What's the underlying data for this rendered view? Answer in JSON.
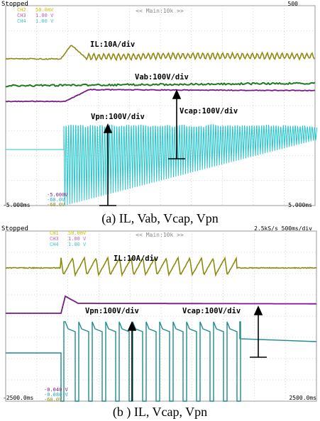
{
  "chart_data": [
    {
      "type": "line",
      "caption": "(a)  IL, Vab, Vcap, Vpn",
      "header": {
        "status": "Stopped",
        "zoom": "<< Main:10k >>",
        "right_readout": "500 ",
        "channels": [
          {
            "name": "CH2",
            "scale": "50.0mV",
            "color": "#c9c200"
          },
          {
            "name": "CH3",
            "scale": "1.00 V",
            "color": "#c060c0"
          },
          {
            "name": "CH4",
            "scale": "1.00 V",
            "color": "#40c8d0"
          }
        ]
      },
      "time_start": "-5.000ms",
      "time_end": "5.000ms",
      "cursor_readouts": [
        "-5.000V",
        "-60.0V",
        "-60.0V"
      ],
      "series": [
        {
          "name": "IL",
          "color": "#8c8a10",
          "label": "IL:10A/div"
        },
        {
          "name": "Vab",
          "color": "#1f7a1f",
          "label": "Vab:100V/div"
        },
        {
          "name": "Vcap",
          "color": "#7a1a8a",
          "label": "Vcap:100V/div"
        },
        {
          "name": "Vpn",
          "color": "#22c5cc",
          "label": "Vpn:100V/div"
        }
      ]
    },
    {
      "type": "line",
      "caption": "(b )  IL, Vcap, Vpn",
      "header": {
        "status": "Stopped",
        "zoom": "<< Main:10k >>",
        "right_readout": "2.5kS/s 500ms/div",
        "channels": [
          {
            "name": "CH1",
            "scale": "50.0mV",
            "color": "#c9c200"
          },
          {
            "name": "CH3",
            "scale": "1.00 V",
            "color": "#c060c0"
          },
          {
            "name": "CH4",
            "scale": "1.00 V",
            "color": "#40c8d0"
          }
        ]
      },
      "time_start": "-2500.0ms",
      "time_end": "2500.0ms",
      "cursor_readouts": [
        "-0.040 V",
        "-0.080 V",
        "-60.0V"
      ],
      "series": [
        {
          "name": "IL",
          "color": "#8c8a10",
          "label": "IL:10A/div"
        },
        {
          "name": "Vcap",
          "color": "#7a1a8a",
          "label": "Vcap:100V/div"
        },
        {
          "name": "Vpn",
          "color": "#1f8c8c",
          "label": "Vpn:100V/div"
        }
      ]
    }
  ]
}
